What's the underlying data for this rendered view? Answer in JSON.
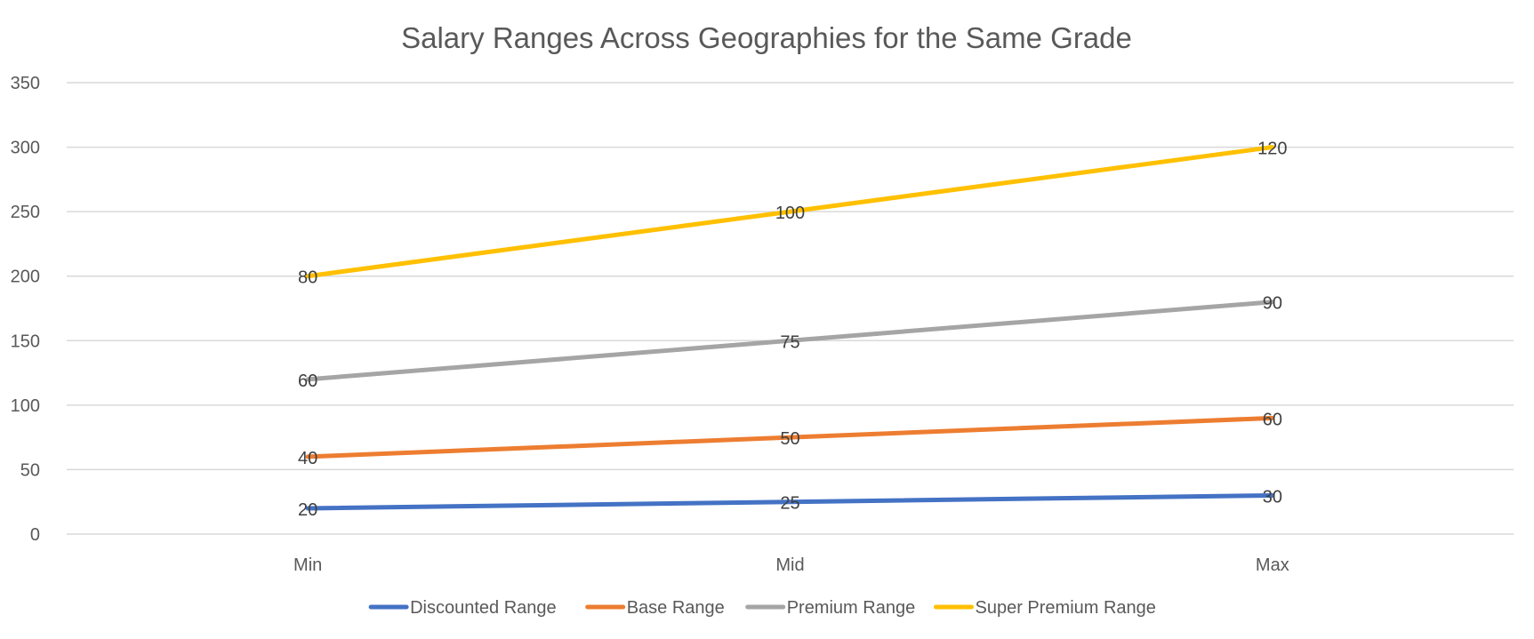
{
  "chart_data": {
    "type": "line",
    "stacked": true,
    "title": "Salary Ranges Across Geographies for the Same Grade",
    "xlabel": "",
    "ylabel": "",
    "categories": [
      "Min",
      "Mid",
      "Max"
    ],
    "ylim": [
      0,
      350
    ],
    "yticks": [
      0,
      50,
      100,
      150,
      200,
      250,
      300,
      350
    ],
    "grid": true,
    "legend": "bottom",
    "data_labels": true,
    "series": [
      {
        "name": "Discounted Range",
        "values": [
          20,
          25,
          30
        ],
        "color": "#4472C4"
      },
      {
        "name": "Base Range",
        "values": [
          40,
          50,
          60
        ],
        "color": "#ED7D31"
      },
      {
        "name": "Premium Range",
        "values": [
          60,
          75,
          90
        ],
        "color": "#A5A5A5"
      },
      {
        "name": "Super Premium Range",
        "values": [
          80,
          100,
          120
        ],
        "color": "#FFC000"
      }
    ]
  }
}
